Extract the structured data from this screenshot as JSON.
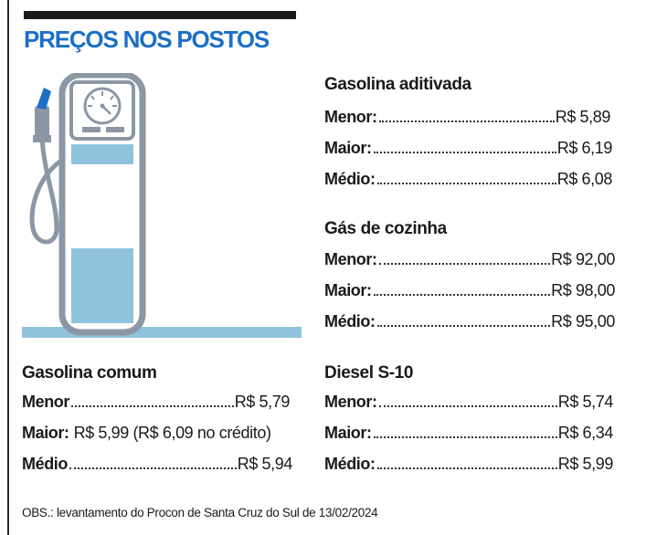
{
  "header": {
    "title": "PREÇOS NOS POSTOS"
  },
  "sections": {
    "aditivada": {
      "title": "Gasolina aditivada",
      "rows": [
        {
          "label": "Menor:",
          "value": "R$ 5,89"
        },
        {
          "label": "Maior:",
          "value": "R$ 6,19"
        },
        {
          "label": "Médio:",
          "value": "R$ 6,08"
        }
      ]
    },
    "gas": {
      "title": "Gás de cozinha",
      "rows": [
        {
          "label": "Menor:",
          "value": "R$ 92,00"
        },
        {
          "label": "Maior:",
          "value": "R$ 98,00"
        },
        {
          "label": "Médio:",
          "value": "R$ 95,00"
        }
      ]
    },
    "comum": {
      "title": "Gasolina comum",
      "rows": [
        {
          "label": "Menor",
          "value": "R$ 5,79"
        },
        {
          "label": "Maior:",
          "value": "R$ 5,99 (R$ 6,09 no crédito)"
        },
        {
          "label": "Médio",
          "value": "R$ 5,94"
        }
      ]
    },
    "diesel": {
      "title": "Diesel S-10",
      "rows": [
        {
          "label": "Menor:",
          "value": "R$ 5,74"
        },
        {
          "label": "Maior:",
          "value": "R$ 6,34"
        },
        {
          "label": "Médio:",
          "value": "R$ 5,99"
        }
      ]
    }
  },
  "footer": {
    "note": "OBS.: levantamento do Procon de Santa Cruz do Sul de 13/02/2024"
  },
  "colors": {
    "title": "#1d6fc6",
    "pump_frame": "#8b97a5",
    "pump_fill": "#8fc3dc",
    "pump_glass": "#e6f1f7"
  },
  "icons": {
    "pump": "fuel-pump-icon"
  }
}
